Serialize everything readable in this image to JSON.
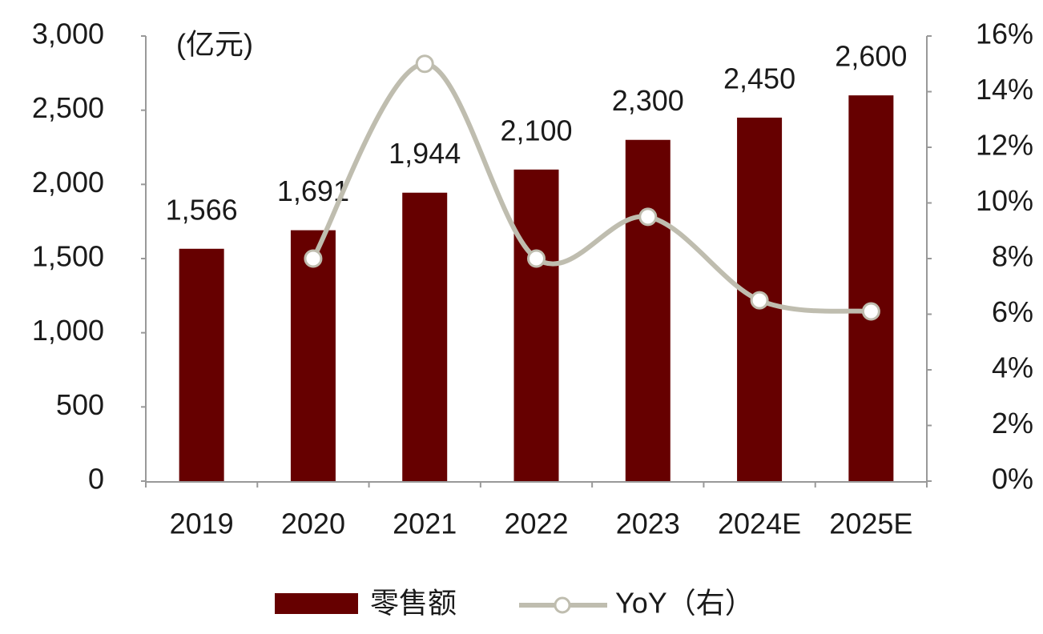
{
  "chart_data": {
    "type": "bar",
    "annotations": [
      "(亿元)"
    ],
    "categories": [
      "2019",
      "2020",
      "2021",
      "2022",
      "2023",
      "2024E",
      "2025E"
    ],
    "series": [
      {
        "name": "零售额",
        "type": "bar",
        "color": "#660000",
        "values": [
          1566,
          1691,
          1944,
          2100,
          2300,
          2450,
          2600
        ],
        "value_labels": [
          "1,566",
          "1,691",
          "1,944",
          "2,100",
          "2,300",
          "2,450",
          "2,600"
        ]
      },
      {
        "name": "YoY（右）",
        "type": "line",
        "axis": "y2",
        "color": "#bfbdaf",
        "values": [
          null,
          8.0,
          15.0,
          8.0,
          9.5,
          6.5,
          6.1
        ]
      }
    ],
    "ylim": [
      0,
      3000
    ],
    "yticks": [
      0,
      500,
      {
        "value": 1000,
        "label": "1,000"
      },
      {
        "value": 1500,
        "label": "1,500"
      },
      {
        "value": 2000,
        "label": "2,000"
      },
      {
        "value": 2500,
        "label": "2,500"
      },
      {
        "value": 3000,
        "label": "3,000"
      }
    ],
    "y2lim": [
      0,
      16
    ],
    "y2ticks": [
      {
        "value": 0,
        "label": "0%"
      },
      {
        "value": 2,
        "label": "2%"
      },
      {
        "value": 4,
        "label": "4%"
      },
      {
        "value": 6,
        "label": "6%"
      },
      {
        "value": 8,
        "label": "8%"
      },
      {
        "value": 10,
        "label": "10%"
      },
      {
        "value": 12,
        "label": "12%"
      },
      {
        "value": 14,
        "label": "14%"
      },
      {
        "value": 16,
        "label": "16%"
      }
    ],
    "grid": false
  }
}
